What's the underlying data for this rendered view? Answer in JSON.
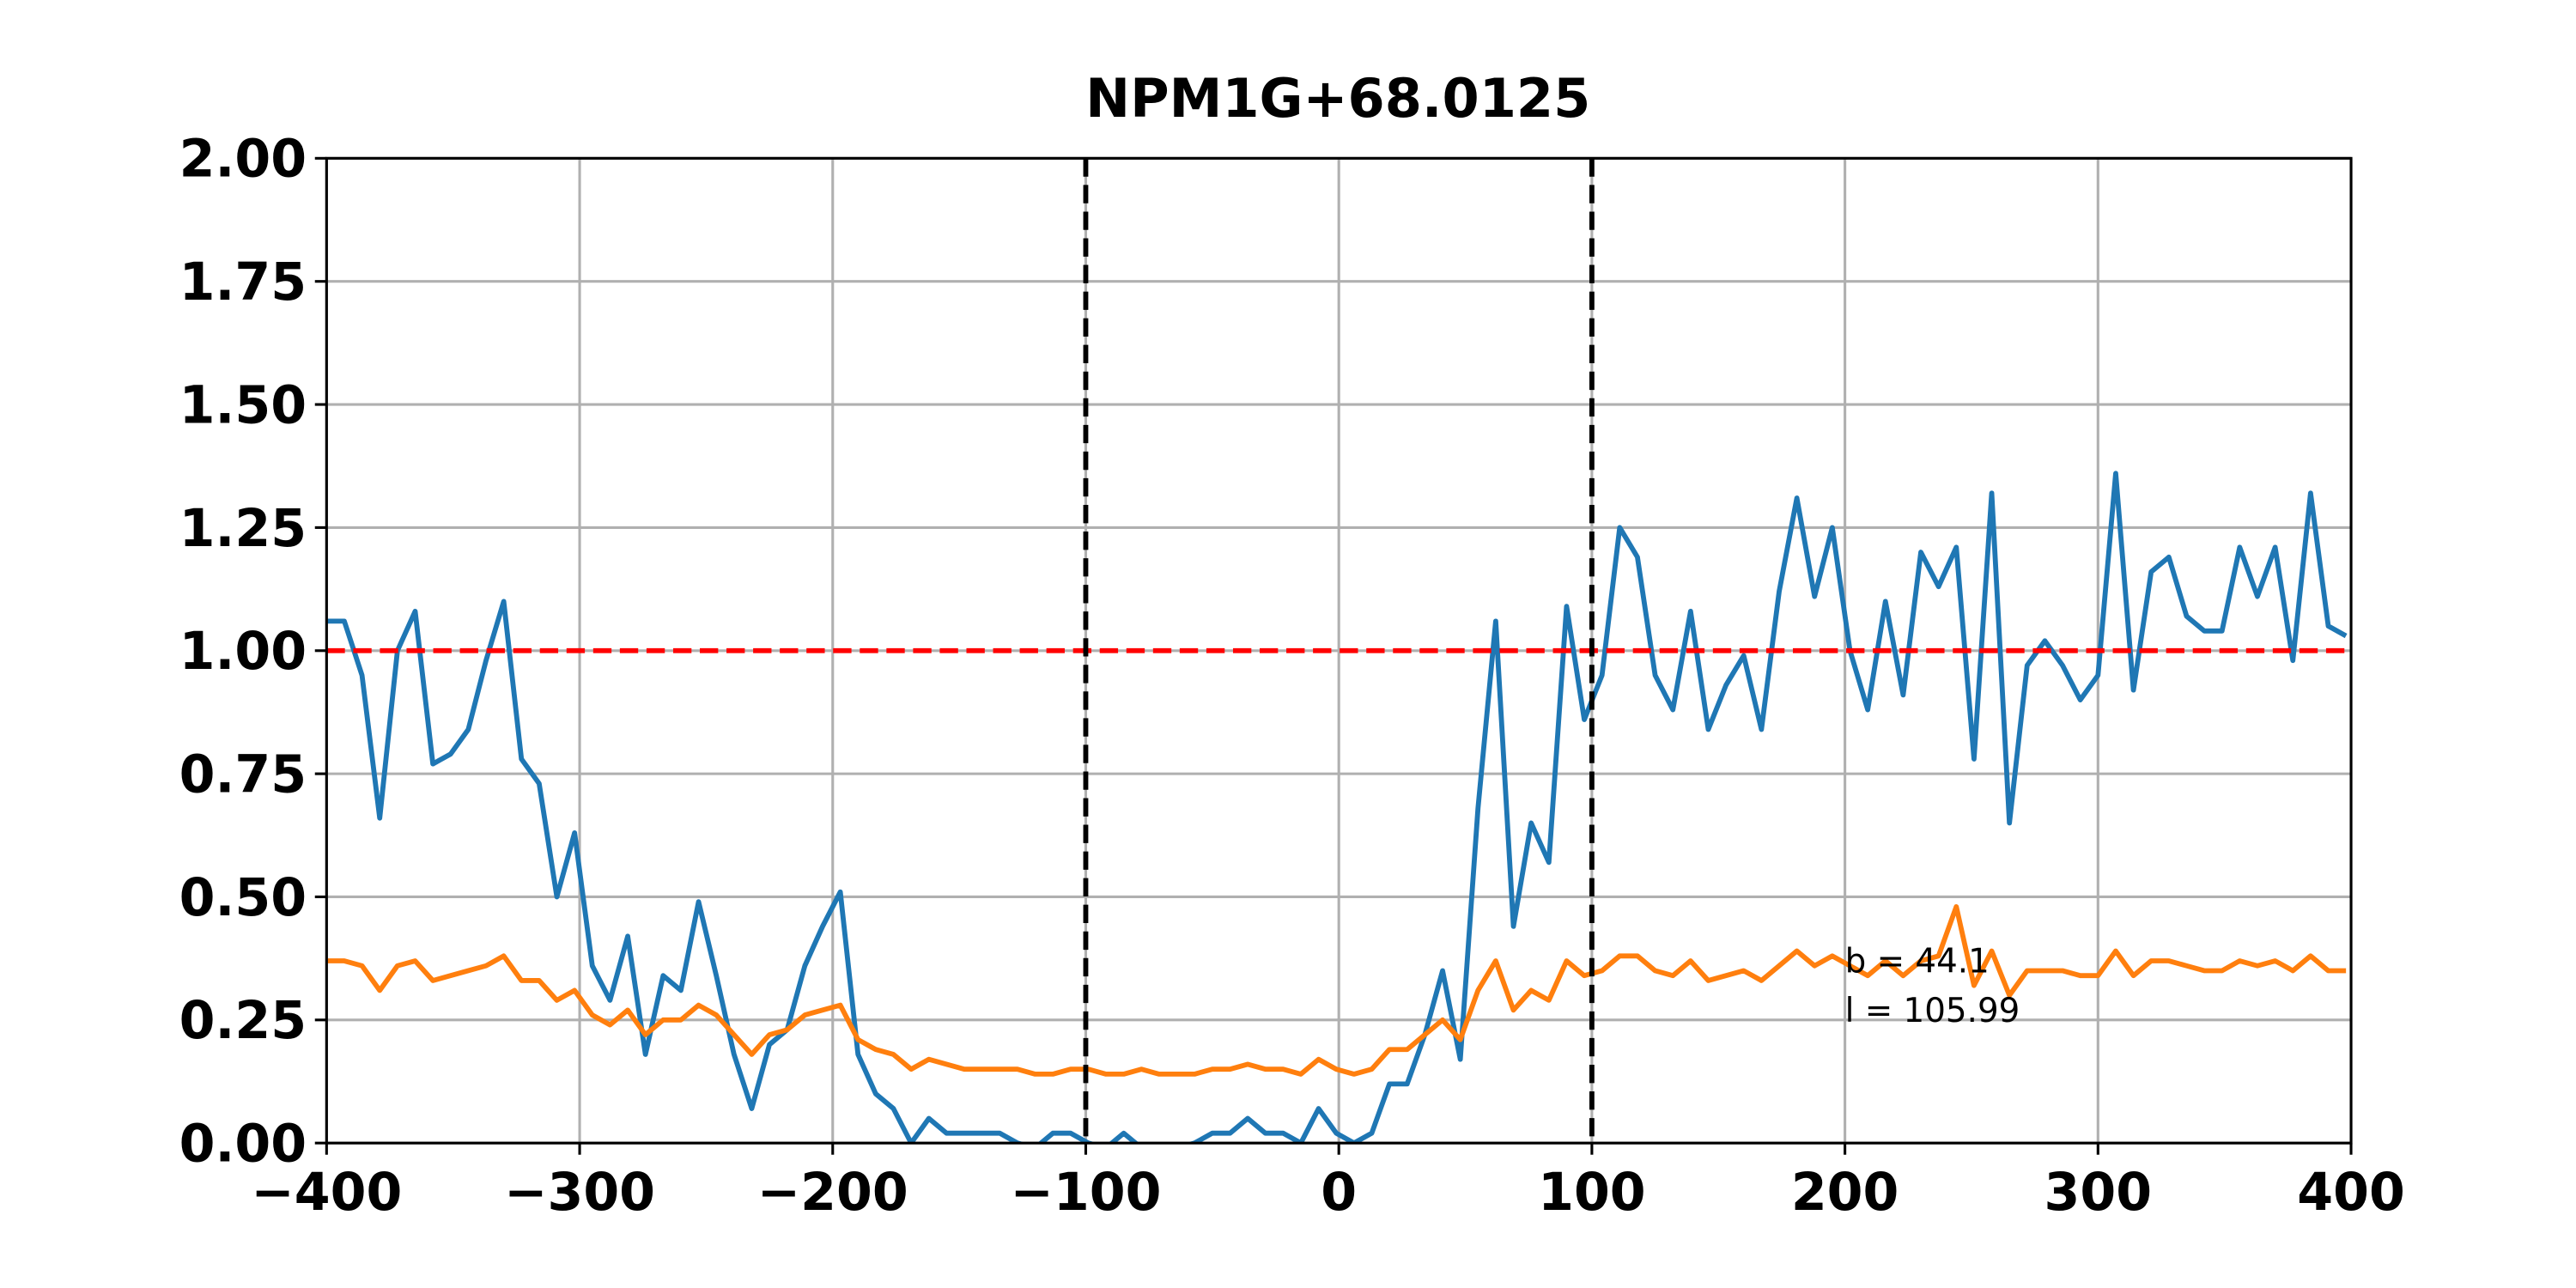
{
  "chart_data": {
    "type": "line",
    "title": "NPM1G+68.0125",
    "x": [
      -400,
      -393,
      -386,
      -379,
      -372,
      -365,
      -358,
      -351,
      -344,
      -337,
      -330,
      -323,
      -316,
      -309,
      -302,
      -295,
      -288,
      -281,
      -274,
      -267,
      -260,
      -253,
      -246,
      -239,
      -232,
      -225,
      -218,
      -211,
      -204,
      -197,
      -190,
      -183,
      -176,
      -169,
      -162,
      -155,
      -148,
      -141,
      -134,
      -127,
      -120,
      -113,
      -106,
      -99,
      -92,
      -85,
      -78,
      -71,
      -64,
      -57,
      -50,
      -43,
      -36,
      -29,
      -22,
      -15,
      -8,
      -1,
      6,
      13,
      20,
      27,
      34,
      41,
      48,
      55,
      62,
      69,
      76,
      83,
      90,
      97,
      104,
      111,
      118,
      125,
      132,
      139,
      146,
      153,
      160,
      167,
      174,
      181,
      188,
      195,
      202,
      209,
      216,
      223,
      230,
      237,
      244,
      251,
      258,
      265,
      272,
      279,
      286,
      293,
      300,
      307,
      314,
      321,
      328,
      335,
      342,
      349,
      356,
      363,
      370,
      377,
      384,
      391,
      398
    ],
    "series": [
      {
        "color": "#1f77b4",
        "values": [
          1.06,
          1.06,
          0.95,
          0.66,
          1.0,
          1.08,
          0.77,
          0.79,
          0.84,
          0.98,
          1.1,
          0.78,
          0.73,
          0.5,
          0.63,
          0.36,
          0.29,
          0.42,
          0.18,
          0.34,
          0.31,
          0.49,
          0.34,
          0.18,
          0.07,
          0.2,
          0.23,
          0.36,
          0.44,
          0.51,
          0.18,
          0.1,
          0.07,
          0.0,
          0.05,
          0.02,
          0.02,
          0.02,
          0.02,
          0.0,
          -0.01,
          0.02,
          0.02,
          0.0,
          -0.01,
          0.02,
          -0.01,
          -0.01,
          -0.01,
          0.0,
          0.02,
          0.02,
          0.05,
          0.02,
          0.02,
          0.0,
          0.07,
          0.02,
          0.0,
          0.02,
          0.12,
          0.12,
          0.22,
          0.35,
          0.17,
          0.68,
          1.06,
          0.44,
          0.65,
          0.57,
          1.09,
          0.86,
          0.95,
          1.25,
          1.19,
          0.95,
          0.88,
          1.08,
          0.84,
          0.93,
          0.99,
          0.84,
          1.12,
          1.31,
          1.11,
          1.25,
          1.0,
          0.88,
          1.1,
          0.91,
          1.2,
          1.13,
          1.21,
          0.78,
          1.32,
          0.65,
          0.97,
          1.02,
          0.97,
          0.9,
          0.95,
          1.36,
          0.92,
          1.16,
          1.19,
          1.07,
          1.04,
          1.04,
          1.21,
          1.11,
          1.21,
          0.98,
          1.32,
          1.05,
          1.03
        ]
      },
      {
        "color": "#ff7f0e",
        "values": [
          0.37,
          0.37,
          0.36,
          0.31,
          0.36,
          0.37,
          0.33,
          0.34,
          0.35,
          0.36,
          0.38,
          0.33,
          0.33,
          0.29,
          0.31,
          0.26,
          0.24,
          0.27,
          0.22,
          0.25,
          0.25,
          0.28,
          0.26,
          0.22,
          0.18,
          0.22,
          0.23,
          0.26,
          0.27,
          0.28,
          0.21,
          0.19,
          0.18,
          0.15,
          0.17,
          0.16,
          0.15,
          0.15,
          0.15,
          0.15,
          0.14,
          0.14,
          0.15,
          0.15,
          0.14,
          0.14,
          0.15,
          0.14,
          0.14,
          0.14,
          0.15,
          0.15,
          0.16,
          0.15,
          0.15,
          0.14,
          0.17,
          0.15,
          0.14,
          0.15,
          0.19,
          0.19,
          0.22,
          0.25,
          0.21,
          0.31,
          0.37,
          0.27,
          0.31,
          0.29,
          0.37,
          0.34,
          0.35,
          0.38,
          0.38,
          0.35,
          0.34,
          0.37,
          0.33,
          0.34,
          0.35,
          0.33,
          0.36,
          0.39,
          0.36,
          0.38,
          0.36,
          0.34,
          0.37,
          0.34,
          0.37,
          0.38,
          0.48,
          0.32,
          0.39,
          0.3,
          0.35,
          0.35,
          0.35,
          0.34,
          0.34,
          0.39,
          0.34,
          0.37,
          0.37,
          0.36,
          0.35,
          0.35,
          0.37,
          0.36,
          0.37,
          0.35,
          0.38,
          0.35,
          0.35
        ]
      }
    ],
    "xlim": [
      -400,
      400
    ],
    "ylim": [
      0,
      2
    ],
    "xticks": [
      {
        "value": -400,
        "label": "−400"
      },
      {
        "value": -300,
        "label": "−300"
      },
      {
        "value": -200,
        "label": "−200"
      },
      {
        "value": -100,
        "label": "−100"
      },
      0,
      100,
      200,
      300,
      400
    ],
    "yticks": [
      {
        "value": 0,
        "label": "0.00"
      },
      {
        "value": 0.25,
        "label": "0.25"
      },
      {
        "value": 0.5,
        "label": "0.50"
      },
      {
        "value": 0.75,
        "label": "0.75"
      },
      {
        "value": 1,
        "label": "1.00"
      },
      {
        "value": 1.25,
        "label": "1.25"
      },
      {
        "value": 1.5,
        "label": "1.50"
      },
      {
        "value": 1.75,
        "label": "1.75"
      },
      {
        "value": 2,
        "label": "2.00"
      }
    ],
    "grid": true,
    "hlines": [
      {
        "value": 1,
        "color": "#ff0000"
      }
    ],
    "vlines": [
      {
        "value": -100,
        "color": "#000000"
      },
      {
        "value": 100,
        "color": "#000000"
      }
    ],
    "annotations": [
      {
        "text": "b = 44.1",
        "x": 200,
        "y": 0.37
      },
      {
        "text": "l = 105.99",
        "x": 200,
        "y": 0.27
      }
    ]
  }
}
